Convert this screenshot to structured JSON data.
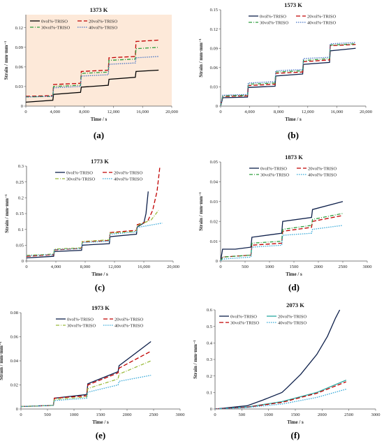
{
  "chart_data": [
    {
      "type": "line",
      "letter": "(a)",
      "title": "1373 K",
      "xlabel": "Time / s",
      "ylabel": "Strain / mm·mm⁻¹",
      "xlim": [
        0,
        20000
      ],
      "ylim": [
        0,
        0.14
      ],
      "xticks": [
        0,
        4000,
        8000,
        12000,
        16000,
        20000
      ],
      "xtick_labels": [
        "0",
        "4,000",
        "8,000",
        "12,000",
        "16,000",
        "20,000"
      ],
      "yticks": [
        0,
        0.03,
        0.06,
        0.09,
        0.12
      ],
      "ytick_labels": [
        "0",
        "0.03",
        "0.06",
        "0.09",
        "0.12"
      ],
      "bg": "#fde9d9",
      "legend": "top-left",
      "series": [
        {
          "name": "0vol%-TRISO",
          "color": "#000000",
          "dash": "solid",
          "x": [
            0,
            3700,
            3800,
            7500,
            7600,
            11300,
            11400,
            15000,
            15100,
            18200
          ],
          "y": [
            0.006,
            0.009,
            0.018,
            0.021,
            0.029,
            0.032,
            0.041,
            0.044,
            0.053,
            0.055
          ]
        },
        {
          "name": "20vol%-TRISO",
          "color": "#c00000",
          "dash": "6,3",
          "x": [
            0,
            3700,
            3800,
            7500,
            7600,
            11300,
            11400,
            15000,
            15100,
            18200
          ],
          "y": [
            0.015,
            0.016,
            0.033,
            0.035,
            0.053,
            0.055,
            0.074,
            0.076,
            0.099,
            0.101
          ]
        },
        {
          "name": "30vol%-TRISO",
          "color": "#2e9e3e",
          "dash": "5,2,1,2",
          "x": [
            0,
            3700,
            3800,
            7500,
            7600,
            11300,
            11400,
            15000,
            15100,
            18200
          ],
          "y": [
            0.014,
            0.015,
            0.03,
            0.032,
            0.05,
            0.052,
            0.07,
            0.072,
            0.088,
            0.09
          ]
        },
        {
          "name": "40vol%-TRISO",
          "color": "#4472c4",
          "dash": "1.5,1.5",
          "x": [
            0,
            3700,
            3800,
            7500,
            7600,
            11300,
            11400,
            15000,
            15100,
            18200
          ],
          "y": [
            0.014,
            0.015,
            0.028,
            0.03,
            0.046,
            0.048,
            0.064,
            0.066,
            0.074,
            0.076
          ]
        }
      ]
    },
    {
      "type": "line",
      "letter": "(b)",
      "title": "1573 K",
      "xlabel": "Time / s",
      "ylabel": "Strain / mm·mm⁻¹",
      "xlim": [
        0,
        20000
      ],
      "ylim": [
        0,
        0.15
      ],
      "xticks": [
        0,
        4000,
        8000,
        12000,
        16000,
        20000
      ],
      "xtick_labels": [
        "0",
        "4,000",
        "8,000",
        "12,000",
        "16,000",
        "20,000"
      ],
      "yticks": [
        0,
        0.03,
        0.06,
        0.09,
        0.12,
        0.15
      ],
      "ytick_labels": [
        "0",
        "0.03",
        "0.06",
        "0.09",
        "0.12",
        "0.15"
      ],
      "bg": "#ffffff",
      "legend": "top-center",
      "series": [
        {
          "name": "0vol%-TRISO",
          "color": "#0d1f4a",
          "dash": "solid",
          "x": [
            0,
            300,
            3700,
            3800,
            7500,
            7600,
            11300,
            11400,
            15000,
            15100,
            18600
          ],
          "y": [
            0,
            0.013,
            0.014,
            0.029,
            0.031,
            0.047,
            0.05,
            0.065,
            0.068,
            0.086,
            0.09
          ]
        },
        {
          "name": "20vol%-TRISO",
          "color": "#c00000",
          "dash": "6,3",
          "x": [
            0,
            300,
            3700,
            3800,
            7500,
            7600,
            11300,
            11400,
            15000,
            15100,
            18600
          ],
          "y": [
            0,
            0.015,
            0.016,
            0.032,
            0.034,
            0.051,
            0.053,
            0.069,
            0.072,
            0.094,
            0.096
          ]
        },
        {
          "name": "30vol%-TRISO",
          "color": "#2e9e3e",
          "dash": "5,2,1,2",
          "x": [
            0,
            300,
            3700,
            3800,
            7500,
            7600,
            11300,
            11400,
            15000,
            15100,
            18600
          ],
          "y": [
            0,
            0.016,
            0.017,
            0.034,
            0.036,
            0.053,
            0.055,
            0.071,
            0.074,
            0.095,
            0.097
          ]
        },
        {
          "name": "40vol%-TRISO",
          "color": "#4472c4",
          "dash": "1.5,1.5",
          "x": [
            0,
            300,
            3700,
            3800,
            7500,
            7600,
            11300,
            11400,
            15000,
            15100,
            18600
          ],
          "y": [
            0,
            0.017,
            0.018,
            0.036,
            0.038,
            0.055,
            0.057,
            0.074,
            0.076,
            0.097,
            0.099
          ]
        }
      ]
    },
    {
      "type": "line",
      "letter": "(c)",
      "title": "1773 K",
      "xlabel": "Time / s",
      "ylabel": "Strain / mm·mm⁻¹",
      "xlim": [
        0,
        20000
      ],
      "ylim": [
        0,
        0.3
      ],
      "xticks": [
        0,
        4000,
        8000,
        12000,
        16000,
        20000
      ],
      "xtick_labels": [
        "0",
        "4,000",
        "8,000",
        "12,000",
        "16,000",
        "20,000"
      ],
      "yticks": [
        0,
        0.05,
        0.1,
        0.15,
        0.2,
        0.25,
        0.3
      ],
      "ytick_labels": [
        "0",
        "0.05",
        "0.1",
        "0.15",
        "0.2",
        "0.25",
        "0.3"
      ],
      "bg": "#ffffff",
      "legend": "top-center",
      "series": [
        {
          "name": "0vol%-TRISO",
          "color": "#0d1f4a",
          "dash": "solid",
          "x": [
            0,
            3700,
            3800,
            7500,
            7600,
            11300,
            11400,
            15000,
            15100,
            16000,
            16300,
            16600
          ],
          "y": [
            0.01,
            0.015,
            0.03,
            0.034,
            0.05,
            0.055,
            0.077,
            0.085,
            0.108,
            0.12,
            0.15,
            0.22
          ]
        },
        {
          "name": "20vol%-TRISO",
          "color": "#c00000",
          "dash": "6,3",
          "x": [
            0,
            3700,
            3800,
            7500,
            7600,
            11300,
            11400,
            15000,
            15100,
            16500,
            17200,
            17800,
            18200
          ],
          "y": [
            0.015,
            0.02,
            0.035,
            0.04,
            0.06,
            0.065,
            0.09,
            0.097,
            0.115,
            0.125,
            0.16,
            0.22,
            0.3
          ]
        },
        {
          "name": "30vol%-TRISO",
          "color": "#9bbb3c",
          "dash": "5,2,1,2",
          "x": [
            0,
            3700,
            3800,
            7500,
            7600,
            11300,
            11400,
            15000,
            15100,
            17000,
            18000
          ],
          "y": [
            0.018,
            0.022,
            0.038,
            0.042,
            0.062,
            0.067,
            0.088,
            0.094,
            0.112,
            0.13,
            0.16
          ]
        },
        {
          "name": "40vol%-TRISO",
          "color": "#33a7d8",
          "dash": "1.5,1.5",
          "x": [
            0,
            3700,
            3800,
            7500,
            7600,
            11300,
            11400,
            15000,
            15100,
            18500
          ],
          "y": [
            0.017,
            0.021,
            0.036,
            0.04,
            0.058,
            0.063,
            0.085,
            0.092,
            0.106,
            0.12
          ]
        }
      ]
    },
    {
      "type": "line",
      "letter": "(d)",
      "title": "1873 K",
      "xlabel": "Time / s",
      "ylabel": "Strain / mm·mm⁻¹",
      "xlim": [
        0,
        3000
      ],
      "ylim": [
        0,
        0.05
      ],
      "xticks": [
        0,
        500,
        1000,
        1500,
        2000,
        2500,
        3000
      ],
      "xtick_labels": [
        "0",
        "500",
        "1000",
        "1500",
        "2000",
        "2500",
        "3000"
      ],
      "yticks": [
        0,
        0.01,
        0.02,
        0.03,
        0.04,
        0.05
      ],
      "ytick_labels": [
        "0",
        "0.01",
        "0.02",
        "0.03",
        "0.04",
        "0.05"
      ],
      "bg": "#ffffff",
      "legend": "top-center",
      "series": [
        {
          "name": "0vol%-TRISO",
          "color": "#0d1f4a",
          "dash": "solid",
          "x": [
            0,
            40,
            300,
            620,
            640,
            1250,
            1270,
            1860,
            1880,
            2500
          ],
          "y": [
            0,
            0.006,
            0.006,
            0.007,
            0.012,
            0.014,
            0.02,
            0.022,
            0.026,
            0.03
          ]
        },
        {
          "name": "20vol%-TRISO",
          "color": "#c00000",
          "dash": "6,3",
          "x": [
            0,
            40,
            620,
            640,
            1250,
            1270,
            1860,
            1880,
            2500
          ],
          "y": [
            0,
            0.002,
            0.003,
            0.008,
            0.009,
            0.015,
            0.017,
            0.02,
            0.023
          ]
        },
        {
          "name": "30vol%-TRISO",
          "color": "#2e9e3e",
          "dash": "5,2,1,2",
          "x": [
            0,
            40,
            620,
            640,
            1250,
            1270,
            1860,
            1880,
            2500
          ],
          "y": [
            0,
            0.002,
            0.003,
            0.009,
            0.01,
            0.016,
            0.018,
            0.021,
            0.024
          ]
        },
        {
          "name": "40vol%-TRISO",
          "color": "#33a7d8",
          "dash": "1.5,1.5",
          "x": [
            0,
            40,
            620,
            640,
            1250,
            1270,
            1860,
            1880,
            2500
          ],
          "y": [
            0,
            0.001,
            0.002,
            0.007,
            0.008,
            0.013,
            0.014,
            0.016,
            0.018
          ]
        }
      ]
    },
    {
      "type": "line",
      "letter": "(e)",
      "title": "1973 K",
      "xlabel": "Time / s",
      "ylabel": "Strain / mm·mm⁻¹",
      "xlim": [
        0,
        3000
      ],
      "ylim": [
        0,
        0.08
      ],
      "xticks": [
        0,
        500,
        1000,
        1500,
        2000,
        2500,
        3000
      ],
      "xtick_labels": [
        "0",
        "500",
        "1000",
        "1500",
        "2000",
        "2500",
        "3000"
      ],
      "yticks": [
        0,
        0.02,
        0.04,
        0.06,
        0.08
      ],
      "ytick_labels": [
        "0",
        "0.02",
        "0.04",
        "0.06",
        "0.08"
      ],
      "bg": "#ffffff",
      "legend": "top-center",
      "series": [
        {
          "name": "0vol%-TRISO",
          "color": "#0d1f4a",
          "dash": "solid",
          "x": [
            0,
            610,
            630,
            1240,
            1260,
            1830,
            1850,
            2450
          ],
          "y": [
            0.002,
            0.003,
            0.009,
            0.012,
            0.021,
            0.031,
            0.036,
            0.056
          ]
        },
        {
          "name": "20vol%-TRISO",
          "color": "#c00000",
          "dash": "6,3",
          "x": [
            0,
            610,
            630,
            1240,
            1260,
            1830,
            1850,
            2450
          ],
          "y": [
            0.002,
            0.003,
            0.009,
            0.011,
            0.02,
            0.03,
            0.034,
            0.048
          ]
        },
        {
          "name": "30vol%-TRISO",
          "color": "#9bbb3c",
          "dash": "5,2,1,2",
          "x": [
            0,
            610,
            630,
            1240,
            1260,
            1830,
            1850,
            2450
          ],
          "y": [
            0.002,
            0.003,
            0.008,
            0.01,
            0.017,
            0.025,
            0.029,
            0.04
          ]
        },
        {
          "name": "40vol%-TRISO",
          "color": "#33a7d8",
          "dash": "1.5,1.5",
          "x": [
            0,
            610,
            630,
            1240,
            1260,
            1830,
            1850,
            2450
          ],
          "y": [
            0.002,
            0.003,
            0.007,
            0.009,
            0.014,
            0.02,
            0.023,
            0.028
          ]
        }
      ]
    },
    {
      "type": "line",
      "letter": "(f)",
      "title": "2073 K",
      "xlabel": "Time / s",
      "ylabel": "Strain / mm·mm⁻¹",
      "xlim": [
        0,
        3000
      ],
      "ylim": [
        0,
        0.6
      ],
      "xticks": [
        0,
        500,
        1000,
        1500,
        2000,
        2500,
        3000
      ],
      "xtick_labels": [
        "0",
        "500",
        "1000",
        "1500",
        "2000",
        "2500",
        "3000"
      ],
      "yticks": [
        0,
        0.1,
        0.2,
        0.3,
        0.4,
        0.5,
        0.6
      ],
      "ytick_labels": [
        "0",
        "0.1",
        "0.2",
        "0.3",
        "0.4",
        "0.5",
        "0.6"
      ],
      "bg": "#ffffff",
      "legend": "top-left",
      "series": [
        {
          "name": "0vol%-TRISO",
          "color": "#0d1f4a",
          "dash": "solid",
          "x": [
            0,
            600,
            900,
            1250,
            1350,
            1600,
            1900,
            2100,
            2250,
            2330
          ],
          "y": [
            0,
            0.02,
            0.055,
            0.1,
            0.13,
            0.21,
            0.33,
            0.44,
            0.55,
            0.6
          ]
        },
        {
          "name": "20vol%-TRISO",
          "color": "#2aa9a0",
          "dash": "solid",
          "x": [
            0,
            600,
            1250,
            1900,
            2450
          ],
          "y": [
            0,
            0.012,
            0.045,
            0.1,
            0.175
          ]
        },
        {
          "name": "30vol%-TRISO",
          "color": "#c00000",
          "dash": "6,3",
          "x": [
            0,
            600,
            1250,
            1900,
            2450
          ],
          "y": [
            0,
            0.011,
            0.04,
            0.095,
            0.165
          ]
        },
        {
          "name": "40vol%-TRISO",
          "color": "#33a7d8",
          "dash": "1.5,1.5",
          "x": [
            0,
            600,
            1250,
            1900,
            2450
          ],
          "y": [
            0,
            0.009,
            0.03,
            0.07,
            0.12
          ]
        }
      ]
    }
  ]
}
